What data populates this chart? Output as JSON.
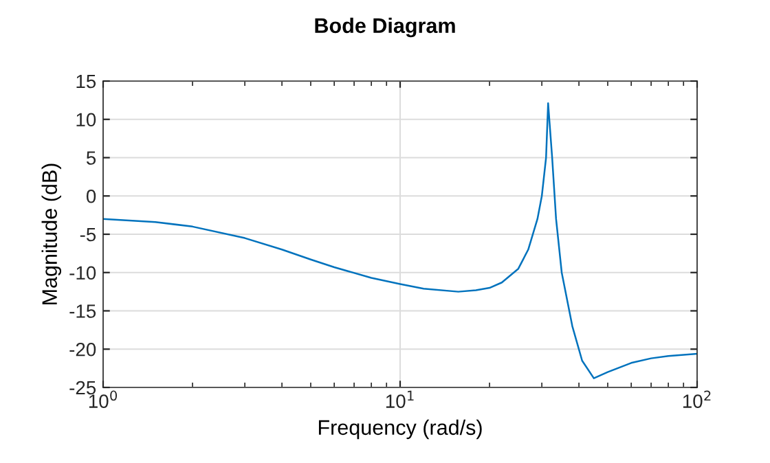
{
  "chart_data": {
    "type": "line",
    "title": "Bode Diagram",
    "xlabel": "Frequency (rad/s)",
    "ylabel": "Magnitude (dB)",
    "log": "x",
    "grid": true,
    "series": [
      {
        "color": "#0072bd",
        "x": [
          1,
          1.5,
          2,
          3,
          4,
          5,
          6,
          8,
          10,
          12,
          15.7,
          18,
          20,
          22,
          25,
          27,
          29,
          30,
          31,
          31.5,
          32.5,
          33.5,
          35,
          38,
          41,
          44.9,
          50,
          60,
          70,
          80,
          100
        ],
        "values": [
          -3.0,
          -3.4,
          -4.0,
          -5.5,
          -7.0,
          -8.3,
          -9.3,
          -10.7,
          -11.5,
          -12.1,
          -12.5,
          -12.3,
          -12.0,
          -11.3,
          -9.5,
          -7.0,
          -3.0,
          0.0,
          5.0,
          12.1,
          5.0,
          -3.0,
          -10.0,
          -17.0,
          -21.5,
          -23.8,
          -23.0,
          -21.8,
          -21.2,
          -20.9,
          -20.6
        ]
      }
    ],
    "xlim": [
      1,
      100
    ],
    "xticks": [
      {
        "value": 1,
        "label": "10$^{0}$"
      },
      {
        "value": 10,
        "label": "10$^{1}$"
      },
      {
        "value": 100,
        "label": "10$^{2}$"
      }
    ],
    "ylim": [
      -25,
      15
    ],
    "yticks": [
      -25,
      -20,
      -15,
      -10,
      -5,
      0,
      5,
      10,
      15
    ]
  }
}
